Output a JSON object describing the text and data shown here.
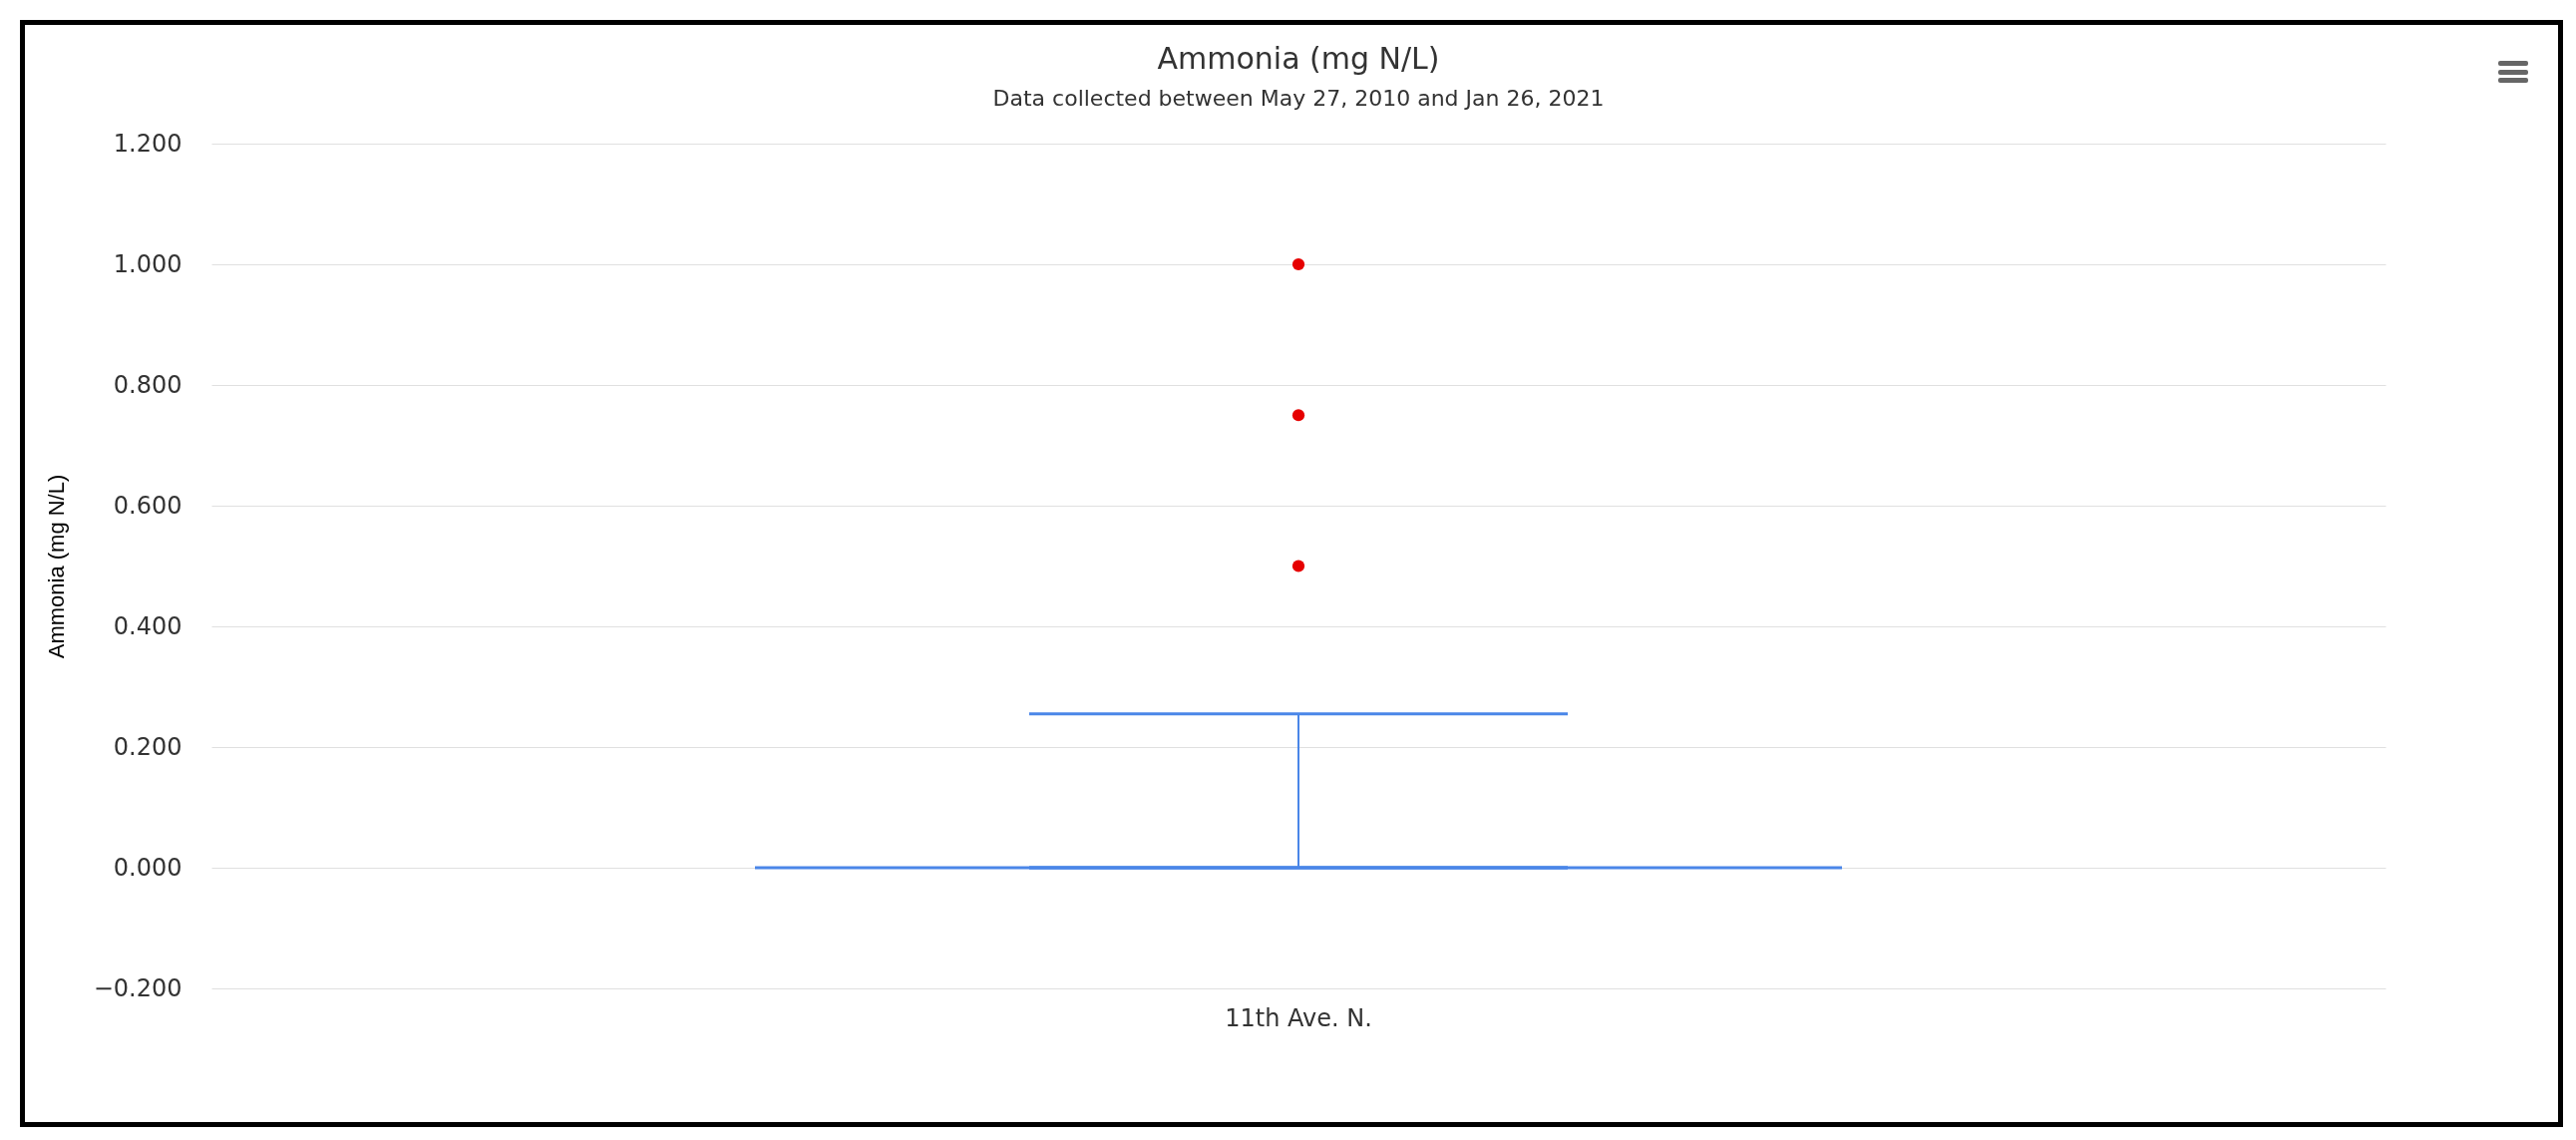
{
  "chart_data": {
    "type": "box",
    "title": "Ammonia (mg N/L)",
    "subtitle": "Data collected between May 27, 2010 and Jan 26, 2021",
    "ylabel": "Ammonia (mg N/L)",
    "categories": [
      "11th Ave. N."
    ],
    "series": [
      {
        "color": "#4a86e8",
        "boxes": [
          {
            "low": 0,
            "q1": 0,
            "median": 0,
            "q3": 0,
            "high": 0.255
          }
        ]
      },
      {
        "type": "scatter",
        "color": "#e60000",
        "x": [
          "11th Ave. N.",
          "11th Ave. N.",
          "11th Ave. N."
        ],
        "values": [
          1.0,
          0.75,
          0.5
        ]
      }
    ],
    "ylim": [
      -0.2,
      1.2
    ],
    "yticks": [
      {
        "value": -0.2,
        "label": "−0.200"
      },
      {
        "value": 0,
        "label": "0.000"
      },
      {
        "value": 0.2,
        "label": "0.200"
      },
      {
        "value": 0.4,
        "label": "0.400"
      },
      {
        "value": 0.6,
        "label": "0.600"
      },
      {
        "value": 0.8,
        "label": "0.800"
      },
      {
        "value": 1.0,
        "label": "1.000"
      },
      {
        "value": 1.2,
        "label": "1.200"
      }
    ],
    "grid": "y",
    "marker": "circle"
  }
}
